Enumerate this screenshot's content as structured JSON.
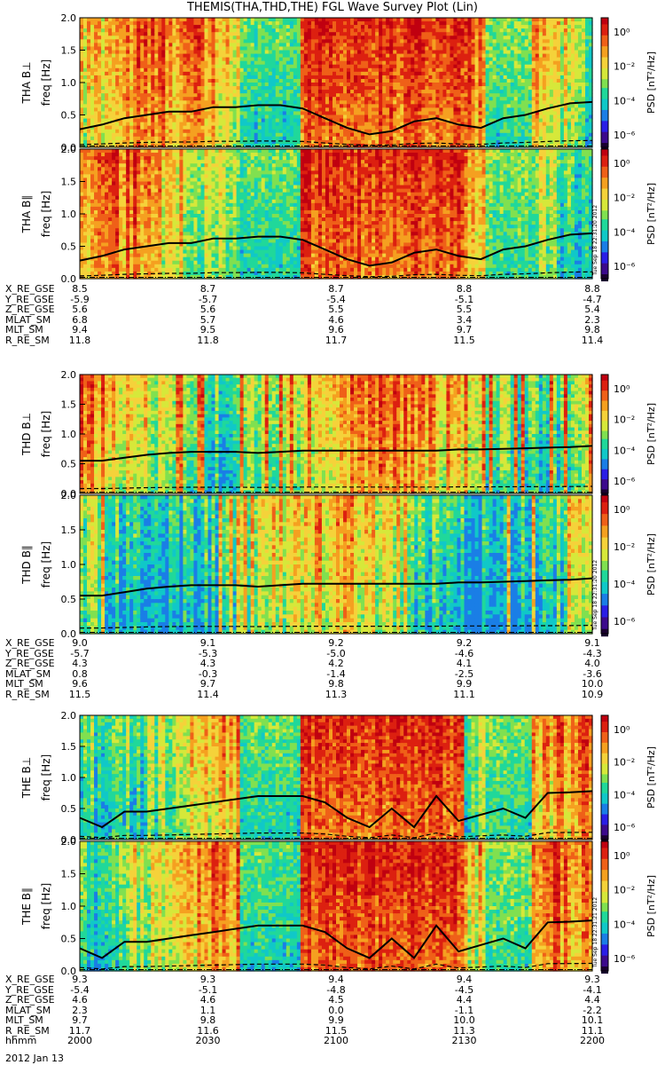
{
  "title": "THEMIS(THA,THD,THE) FGL Wave Survey Plot (Lin)",
  "colors": {
    "palette": [
      "#1a0030",
      "#3c0a8c",
      "#2a1ee6",
      "#1a7ee6",
      "#10c8c8",
      "#20d89a",
      "#80e050",
      "#d6e83a",
      "#f5d23a",
      "#f5a020",
      "#ef6018",
      "#dc2010",
      "#c00010"
    ],
    "line": "#000000"
  },
  "chart_data": [
    {
      "type": "heatmap",
      "probe": "THA",
      "ylabel_prefix": "THA B⊥",
      "ylabel": "freq [Hz]",
      "ylim": [
        0,
        2
      ],
      "yticks": [
        "2.0",
        "1.5",
        "1.0",
        "0.5",
        "0.0"
      ],
      "colorbar": {
        "label": "PSD [nT²/Hz]",
        "ticks": [
          "10⁰",
          "10⁻²",
          "10⁻⁴",
          "10⁻⁶"
        ]
      },
      "gyro_fp": [
        0.28,
        0.35,
        0.45,
        0.5,
        0.55,
        0.55,
        0.62,
        0.62,
        0.65,
        0.65,
        0.6,
        0.45,
        0.3,
        0.2,
        0.25,
        0.4,
        0.45,
        0.35,
        0.3,
        0.45,
        0.5,
        0.6,
        0.68,
        0.7
      ],
      "stamp": ""
    },
    {
      "type": "heatmap",
      "probe": "THA",
      "ylabel_prefix": "THA B∥",
      "ylabel": "freq [Hz]",
      "ylim": [
        0,
        2
      ],
      "yticks": [
        "2.0",
        "1.5",
        "1.0",
        "0.5",
        "0.0"
      ],
      "colorbar": {
        "label": "PSD [nT²/Hz]",
        "ticks": [
          "10⁰",
          "10⁻²",
          "10⁻⁴",
          "10⁻⁶"
        ]
      },
      "gyro_fp": [
        0.28,
        0.35,
        0.45,
        0.5,
        0.55,
        0.55,
        0.62,
        0.62,
        0.65,
        0.65,
        0.6,
        0.45,
        0.3,
        0.2,
        0.25,
        0.4,
        0.45,
        0.35,
        0.3,
        0.45,
        0.5,
        0.6,
        0.68,
        0.7
      ],
      "stamp": "Tue Sep 18 22:31:20 2012"
    },
    {
      "type": "heatmap",
      "probe": "THD",
      "ylabel_prefix": "THD B⊥",
      "ylabel": "freq [Hz]",
      "ylim": [
        0,
        2
      ],
      "yticks": [
        "2.0",
        "1.5",
        "1.0",
        "0.5",
        "0.0"
      ],
      "colorbar": {
        "label": "PSD [nT²/Hz]",
        "ticks": [
          "10⁰",
          "10⁻²",
          "10⁻⁴",
          "10⁻⁶"
        ]
      },
      "gyro_fp": [
        0.55,
        0.55,
        0.6,
        0.65,
        0.68,
        0.7,
        0.7,
        0.7,
        0.68,
        0.7,
        0.72,
        0.72,
        0.72,
        0.72,
        0.72,
        0.72,
        0.72,
        0.74,
        0.74,
        0.75,
        0.76,
        0.77,
        0.78,
        0.8
      ],
      "stamp": ""
    },
    {
      "type": "heatmap",
      "probe": "THD",
      "ylabel_prefix": "THD B∥",
      "ylabel": "freq [Hz]",
      "ylim": [
        0,
        2
      ],
      "yticks": [
        "2.0",
        "1.5",
        "1.0",
        "0.5",
        "0.0"
      ],
      "colorbar": {
        "label": "PSD [nT²/Hz]",
        "ticks": [
          "10⁰",
          "10⁻²",
          "10⁻⁴",
          "10⁻⁶"
        ]
      },
      "gyro_fp": [
        0.55,
        0.55,
        0.6,
        0.65,
        0.68,
        0.7,
        0.7,
        0.7,
        0.68,
        0.7,
        0.72,
        0.72,
        0.72,
        0.72,
        0.72,
        0.72,
        0.72,
        0.74,
        0.74,
        0.75,
        0.76,
        0.77,
        0.78,
        0.8
      ],
      "stamp": "Tue Sep 18 22:31:20 2012"
    },
    {
      "type": "heatmap",
      "probe": "THE",
      "ylabel_prefix": "THE B⊥",
      "ylabel": "freq [Hz]",
      "ylim": [
        0,
        2
      ],
      "yticks": [
        "2.0",
        "1.5",
        "1.0",
        "0.5",
        "0.0"
      ],
      "colorbar": {
        "label": "PSD [nT²/Hz]",
        "ticks": [
          "10⁰",
          "10⁻²",
          "10⁻⁴",
          "10⁻⁶"
        ]
      },
      "gyro_fp": [
        0.35,
        0.2,
        0.45,
        0.45,
        0.5,
        0.55,
        0.6,
        0.65,
        0.7,
        0.7,
        0.7,
        0.6,
        0.35,
        0.2,
        0.5,
        0.2,
        0.7,
        0.3,
        0.4,
        0.5,
        0.35,
        0.75,
        0.76,
        0.78
      ],
      "stamp": ""
    },
    {
      "type": "heatmap",
      "probe": "THE",
      "ylabel_prefix": "THE B∥",
      "ylabel": "freq [Hz]",
      "ylim": [
        0,
        2
      ],
      "yticks": [
        "2.0",
        "1.5",
        "1.0",
        "0.5",
        "0.0"
      ],
      "colorbar": {
        "label": "PSD [nT²/Hz]",
        "ticks": [
          "10⁰",
          "10⁻²",
          "10⁻⁴",
          "10⁻⁶"
        ]
      },
      "gyro_fp": [
        0.35,
        0.2,
        0.45,
        0.45,
        0.5,
        0.55,
        0.6,
        0.65,
        0.7,
        0.7,
        0.7,
        0.6,
        0.35,
        0.2,
        0.5,
        0.2,
        0.7,
        0.3,
        0.4,
        0.5,
        0.35,
        0.75,
        0.76,
        0.78
      ],
      "stamp": "Tue Sep 18 22:31:21 2012"
    }
  ],
  "ephemeris": [
    {
      "probe": "THA",
      "rows": [
        {
          "label": "X_RE_GSE",
          "values": [
            "8.5",
            "8.7",
            "8.7",
            "8.8",
            "8.8"
          ]
        },
        {
          "label": "Y_RE_GSE",
          "values": [
            "-5.9",
            "-5.7",
            "-5.4",
            "-5.1",
            "-4.7"
          ]
        },
        {
          "label": "Z_RE_GSE",
          "values": [
            "5.6",
            "5.6",
            "5.5",
            "5.5",
            "5.4"
          ]
        },
        {
          "label": "MLAT_SM",
          "values": [
            "6.8",
            "5.7",
            "4.6",
            "3.4",
            "2.3"
          ]
        },
        {
          "label": "MLT_SM",
          "values": [
            "9.4",
            "9.5",
            "9.6",
            "9.7",
            "9.8"
          ]
        },
        {
          "label": "R_RE_SM",
          "values": [
            "11.8",
            "11.8",
            "11.7",
            "11.5",
            "11.4"
          ]
        }
      ]
    },
    {
      "probe": "THD",
      "rows": [
        {
          "label": "X_RE_GSE",
          "values": [
            "9.0",
            "9.1",
            "9.2",
            "9.2",
            "9.1"
          ]
        },
        {
          "label": "Y_RE_GSE",
          "values": [
            "-5.7",
            "-5.3",
            "-5.0",
            "-4.6",
            "-4.3"
          ]
        },
        {
          "label": "Z_RE_GSE",
          "values": [
            "4.3",
            "4.3",
            "4.2",
            "4.1",
            "4.0"
          ]
        },
        {
          "label": "MLAT_SM",
          "values": [
            "0.8",
            "-0.3",
            "-1.4",
            "-2.5",
            "-3.6"
          ]
        },
        {
          "label": "MLT_SM",
          "values": [
            "9.6",
            "9.7",
            "9.8",
            "9.9",
            "10.0"
          ]
        },
        {
          "label": "R_RE_SM",
          "values": [
            "11.5",
            "11.4",
            "11.3",
            "11.1",
            "10.9"
          ]
        }
      ]
    },
    {
      "probe": "THE",
      "rows": [
        {
          "label": "X_RE_GSE",
          "values": [
            "9.3",
            "9.3",
            "9.4",
            "9.4",
            "9.3"
          ]
        },
        {
          "label": "Y_RE_GSE",
          "values": [
            "-5.4",
            "-5.1",
            "-4.8",
            "-4.5",
            "-4.1"
          ]
        },
        {
          "label": "Z_RE_GSE",
          "values": [
            "4.6",
            "4.6",
            "4.5",
            "4.4",
            "4.4"
          ]
        },
        {
          "label": "MLAT_SM",
          "values": [
            "2.3",
            "1.1",
            "0.0",
            "-1.1",
            "-2.2"
          ]
        },
        {
          "label": "MLT_SM",
          "values": [
            "9.7",
            "9.8",
            "9.9",
            "10.0",
            "10.1"
          ]
        },
        {
          "label": "R_RE_SM",
          "values": [
            "11.7",
            "11.6",
            "11.5",
            "11.3",
            "11.1"
          ]
        },
        {
          "label": "hhmm",
          "values": [
            "2000",
            "2030",
            "2100",
            "2130",
            "2200"
          ]
        }
      ]
    }
  ],
  "footer": {
    "date": "2012 Jan 13"
  }
}
